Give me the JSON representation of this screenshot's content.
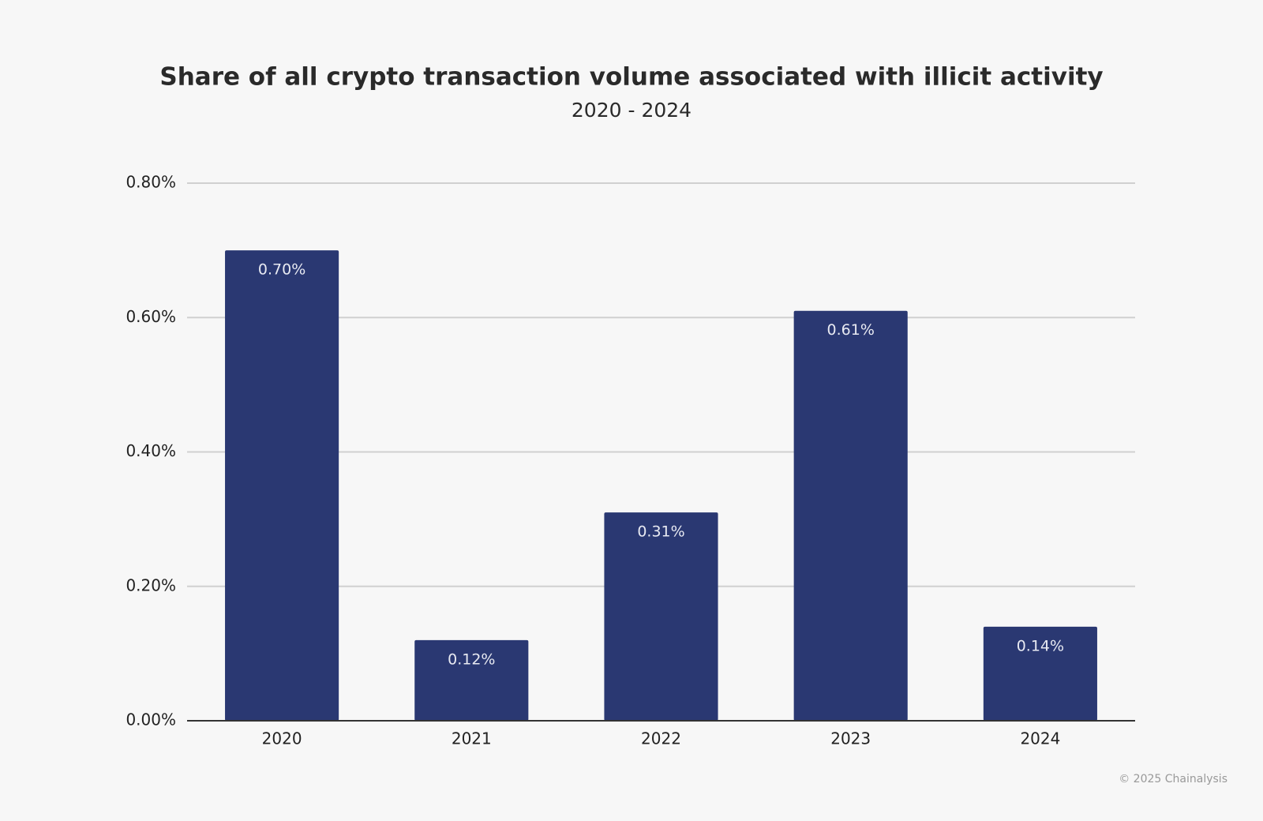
{
  "chart_data": {
    "type": "bar",
    "title": "Share of all crypto transaction volume associated with illicit activity",
    "subtitle": "2020 - 2024",
    "categories": [
      "2020",
      "2021",
      "2022",
      "2023",
      "2024"
    ],
    "values": [
      0.7,
      0.12,
      0.31,
      0.61,
      0.14
    ],
    "value_labels": [
      "0.70%",
      "0.12%",
      "0.31%",
      "0.61%",
      "0.14%"
    ],
    "color": "#2a3872",
    "ylim": [
      0,
      0.8
    ],
    "yticks": [
      {
        "value": 0,
        "label": "0.00%"
      },
      {
        "value": 0.2,
        "label": "0.20%"
      },
      {
        "value": 0.4,
        "label": "0.40%"
      },
      {
        "value": 0.6,
        "label": "0.60%"
      },
      {
        "value": 0.8,
        "label": "0.80%"
      }
    ],
    "grid": true,
    "source": "© 2025 Chainalysis"
  }
}
